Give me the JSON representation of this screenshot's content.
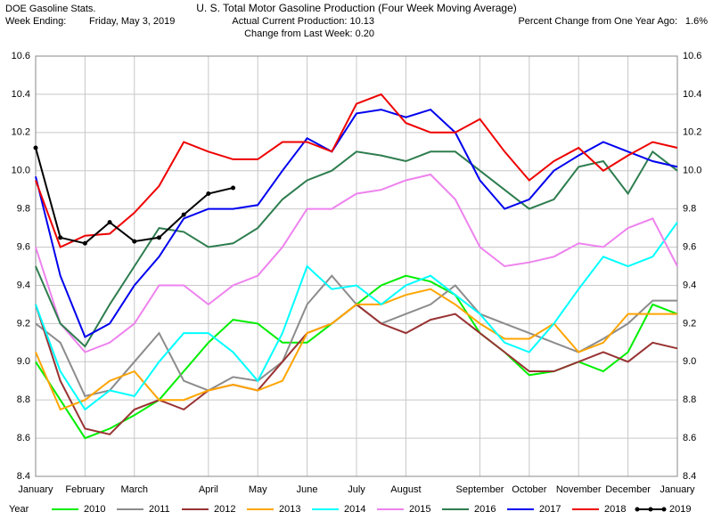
{
  "header": {
    "source": "DOE Gasoline Stats.",
    "week_label": "Week Ending:",
    "week_value": "Friday, May 3, 2019",
    "production": "Actual Current Production: 10.13",
    "change": "Change from Last Week: 0.20",
    "percent_label": "Percent Change from One Year Ago:",
    "percent_value": "1.6%"
  },
  "chart_data": {
    "type": "line",
    "title": "U. S. Total Motor Gasoline Production (Four Week Moving Average)",
    "legend_title": "Year",
    "categories": [
      "January",
      null,
      "February",
      null,
      "March",
      null,
      null,
      "April",
      null,
      "May",
      null,
      "June",
      null,
      "July",
      null,
      "August",
      null,
      null,
      "September",
      null,
      "October",
      null,
      "November",
      null,
      "December",
      null,
      "January"
    ],
    "ylim": [
      8.4,
      10.6
    ],
    "yticks": [
      {
        "value": 8.4,
        "label": "8.4"
      },
      {
        "value": 8.6,
        "label": "8.6"
      },
      {
        "value": 8.8,
        "label": "8.8"
      },
      {
        "value": 9.0,
        "label": "9.0"
      },
      {
        "value": 9.2,
        "label": "9.2"
      },
      {
        "value": 9.4,
        "label": "9.4"
      },
      {
        "value": 9.6,
        "label": "9.6"
      },
      {
        "value": 9.8,
        "label": "9.8"
      },
      {
        "value": 10.0,
        "label": "10.0"
      },
      {
        "value": 10.2,
        "label": "10.2"
      },
      {
        "value": 10.4,
        "label": "10.4"
      },
      {
        "value": 10.6,
        "label": "10.6"
      }
    ],
    "grid": true,
    "series": [
      {
        "name": "2010",
        "color": "#00ee00",
        "values": [
          9.0,
          8.8,
          8.6,
          8.65,
          8.72,
          8.8,
          8.95,
          9.1,
          9.22,
          9.2,
          9.1,
          9.1,
          9.2,
          9.3,
          9.4,
          9.45,
          9.42,
          9.35,
          9.15,
          9.05,
          8.93,
          8.95,
          9.0,
          8.95,
          9.05,
          9.3,
          9.25
        ]
      },
      {
        "name": "2011",
        "color": "#8c8c8c",
        "values": [
          9.2,
          9.1,
          8.82,
          8.85,
          9.0,
          9.15,
          8.9,
          8.85,
          8.92,
          8.9,
          9.0,
          9.3,
          9.45,
          9.3,
          9.2,
          9.25,
          9.3,
          9.4,
          9.25,
          9.2,
          9.15,
          9.1,
          9.05,
          9.12,
          9.2,
          9.32,
          9.32
        ]
      },
      {
        "name": "2012",
        "color": "#993333",
        "values": [
          9.3,
          8.9,
          8.65,
          8.62,
          8.75,
          8.8,
          8.75,
          8.85,
          8.88,
          8.85,
          9.0,
          9.15,
          9.2,
          9.3,
          9.2,
          9.15,
          9.22,
          9.25,
          9.15,
          9.05,
          8.95,
          8.95,
          9.0,
          9.05,
          9.0,
          9.1,
          9.07
        ]
      },
      {
        "name": "2013",
        "color": "#ffa500",
        "values": [
          9.05,
          8.75,
          8.8,
          8.9,
          8.95,
          8.8,
          8.8,
          8.85,
          8.88,
          8.85,
          8.9,
          9.15,
          9.2,
          9.3,
          9.3,
          9.35,
          9.38,
          9.3,
          9.2,
          9.12,
          9.12,
          9.2,
          9.05,
          9.1,
          9.25,
          9.25,
          9.25
        ]
      },
      {
        "name": "2014",
        "color": "#00ffff",
        "values": [
          9.3,
          8.95,
          8.75,
          8.85,
          8.82,
          9.0,
          9.15,
          9.15,
          9.05,
          8.9,
          9.15,
          9.5,
          9.38,
          9.4,
          9.3,
          9.4,
          9.45,
          9.35,
          9.25,
          9.1,
          9.05,
          9.2,
          9.38,
          9.55,
          9.5,
          9.55,
          9.73
        ]
      },
      {
        "name": "2015",
        "color": "#ee82ee",
        "values": [
          9.6,
          9.2,
          9.05,
          9.1,
          9.2,
          9.4,
          9.4,
          9.3,
          9.4,
          9.45,
          9.6,
          9.8,
          9.8,
          9.88,
          9.9,
          9.95,
          9.98,
          9.85,
          9.6,
          9.5,
          9.52,
          9.55,
          9.62,
          9.6,
          9.7,
          9.75,
          9.5
        ]
      },
      {
        "name": "2016",
        "color": "#2e7d4f",
        "values": [
          9.5,
          9.2,
          9.08,
          9.3,
          9.5,
          9.7,
          9.68,
          9.6,
          9.62,
          9.7,
          9.85,
          9.95,
          10.0,
          10.1,
          10.08,
          10.05,
          10.1,
          10.1,
          10.0,
          9.9,
          9.8,
          9.85,
          10.02,
          10.05,
          9.88,
          10.1,
          10.0
        ]
      },
      {
        "name": "2017",
        "color": "#0000ee",
        "values": [
          9.97,
          9.45,
          9.13,
          9.2,
          9.4,
          9.55,
          9.75,
          9.8,
          9.8,
          9.82,
          10.0,
          10.17,
          10.1,
          10.3,
          10.32,
          10.28,
          10.32,
          10.2,
          9.95,
          9.8,
          9.85,
          10.0,
          10.08,
          10.15,
          10.1,
          10.05,
          10.02
        ]
      },
      {
        "name": "2018",
        "color": "#ee0000",
        "values": [
          9.95,
          9.6,
          9.66,
          9.67,
          9.78,
          9.92,
          10.15,
          10.1,
          10.06,
          10.06,
          10.15,
          10.15,
          10.1,
          10.35,
          10.4,
          10.25,
          10.2,
          10.2,
          10.27,
          10.1,
          9.95,
          10.05,
          10.12,
          10.0,
          10.08,
          10.15,
          10.12
        ]
      },
      {
        "name": "2019",
        "color": "#000000",
        "markers": true,
        "values": [
          10.12,
          9.65,
          9.62,
          9.73,
          9.63,
          9.65,
          9.77,
          9.88,
          9.91,
          null,
          null,
          null,
          null,
          null,
          null,
          null,
          null,
          null,
          null,
          null,
          null,
          null,
          null,
          null,
          null,
          null,
          null
        ]
      }
    ]
  }
}
